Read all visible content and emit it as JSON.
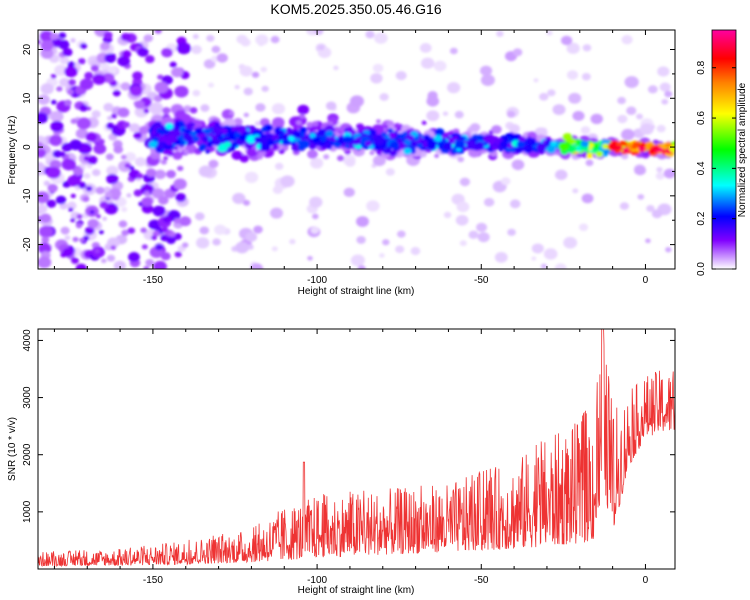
{
  "chart_data": [
    {
      "type": "heatmap",
      "title": "KOM5.2025.350.05.46.G16",
      "xlabel": "Height of straight line (km)",
      "ylabel": "Frequency (Hz)",
      "xlim": [
        -185,
        9
      ],
      "ylim": [
        -25,
        24
      ],
      "xticks": [
        -150,
        -100,
        -50,
        0
      ],
      "yticks": [
        20,
        10,
        0,
        -10,
        -20
      ],
      "xtick_labels": [
        "-150",
        "-100",
        "-50",
        "0"
      ],
      "ytick_labels": [
        "20",
        "10",
        "0",
        "-10",
        "-20"
      ],
      "colorbar": {
        "label": "Normalized spectral amplitude",
        "range": [
          0,
          0.95
        ],
        "ticks": [
          0.0,
          0.2,
          0.4,
          0.6,
          0.8
        ],
        "tick_labels": [
          "0.0",
          "0.2",
          "0.4",
          "0.6",
          "0.8"
        ],
        "colors": [
          "#ffffff",
          "#8000ff",
          "#0000ff",
          "#00ffff",
          "#00ff00",
          "#ffff00",
          "#ff8000",
          "#ff0000",
          "#ff00a0"
        ]
      },
      "description_points": [
        {
          "x": -150,
          "y": 3,
          "amp": 0.25
        },
        {
          "x": -100,
          "y": 2,
          "amp": 0.25
        },
        {
          "x": -50,
          "y": 0,
          "amp": 0.3
        },
        {
          "x": -15,
          "y": -2,
          "amp": 0.55
        },
        {
          "x": -5,
          "y": 0,
          "amp": 0.85
        },
        {
          "x": 5,
          "y": 0,
          "amp": 0.8
        }
      ]
    },
    {
      "type": "line",
      "xlabel": "Height of straight line (km)",
      "ylabel": "SNR (10 * v/v)",
      "xlim": [
        -185,
        9
      ],
      "ylim": [
        0,
        4200
      ],
      "xticks": [
        -150,
        -100,
        -50,
        0
      ],
      "yticks": [
        4000,
        3000,
        2000,
        1000
      ],
      "xtick_labels": [
        "-150",
        "-100",
        "-50",
        "0"
      ],
      "ytick_labels": [
        "4000",
        "3000",
        "2000",
        "1000"
      ],
      "series": [
        {
          "name": "SNR",
          "color": "#ee3333",
          "envelope": {
            "x": [
              -185,
              -160,
              -140,
              -120,
              -110,
              -100,
              -80,
              -60,
              -40,
              -30,
              -20,
              -15,
              -13,
              -10,
              -5,
              0,
              5,
              9
            ],
            "low": [
              50,
              60,
              80,
              120,
              150,
              200,
              250,
              300,
              350,
              400,
              450,
              500,
              1500,
              600,
              1800,
              2300,
              2400,
              2400
            ],
            "high": [
              300,
              350,
              500,
              700,
              1100,
              1300,
              1400,
              1500,
              1900,
              2300,
              2600,
              3100,
              4200,
              2800,
              3100,
              3400,
              3500,
              3450
            ]
          }
        }
      ]
    }
  ]
}
